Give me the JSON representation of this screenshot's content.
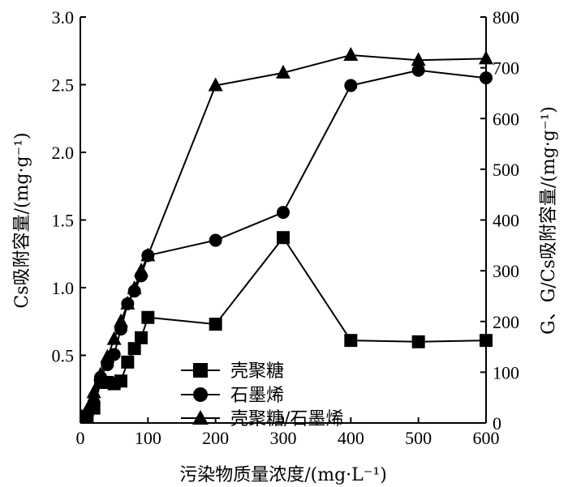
{
  "chart_data": {
    "type": "line",
    "xlabel": "污染物质量浓度/(mg·L⁻¹)",
    "ylabel_left": "Cs吸附容量/(mg·g⁻¹)",
    "ylabel_right": "G、G/Cs吸附容量/(mg·g⁻¹)",
    "xlim": [
      0,
      600
    ],
    "ylim_left": [
      0,
      3.0
    ],
    "ylim_right": [
      0,
      800
    ],
    "x_ticks": [
      "0",
      "100",
      "200",
      "300",
      "400",
      "500",
      "600"
    ],
    "y_left_ticks": [
      "0.5",
      "1.0",
      "1.5",
      "2.0",
      "2.5",
      "3.0"
    ],
    "y_right_ticks": [
      "0",
      "100",
      "200",
      "300",
      "400",
      "500",
      "600",
      "700",
      "800"
    ],
    "legend_position": "bottom-center",
    "series": [
      {
        "name": "壳聚糖",
        "axis": "left",
        "marker": "square",
        "x": [
          10,
          20,
          30,
          40,
          50,
          60,
          70,
          80,
          90,
          100,
          200,
          300,
          400,
          500,
          600
        ],
        "y": [
          0.05,
          0.11,
          0.3,
          0.3,
          0.29,
          0.31,
          0.45,
          0.55,
          0.63,
          0.78,
          0.73,
          1.37,
          0.61,
          0.6,
          0.61
        ]
      },
      {
        "name": "石墨烯",
        "axis": "right",
        "marker": "circle",
        "x": [
          10,
          20,
          30,
          40,
          50,
          60,
          70,
          80,
          90,
          100,
          200,
          300,
          400,
          500,
          600
        ],
        "y": [
          15,
          40,
          90,
          115,
          135,
          185,
          235,
          260,
          290,
          330,
          360,
          415,
          665,
          695,
          680
        ]
      },
      {
        "name": "壳聚糖/石墨烯",
        "axis": "right",
        "marker": "triangle",
        "x": [
          10,
          20,
          30,
          40,
          50,
          60,
          70,
          80,
          90,
          100,
          200,
          300,
          400,
          500,
          600
        ],
        "y": [
          25,
          60,
          95,
          130,
          165,
          200,
          235,
          265,
          300,
          330,
          665,
          690,
          725,
          715,
          718
        ]
      }
    ]
  }
}
